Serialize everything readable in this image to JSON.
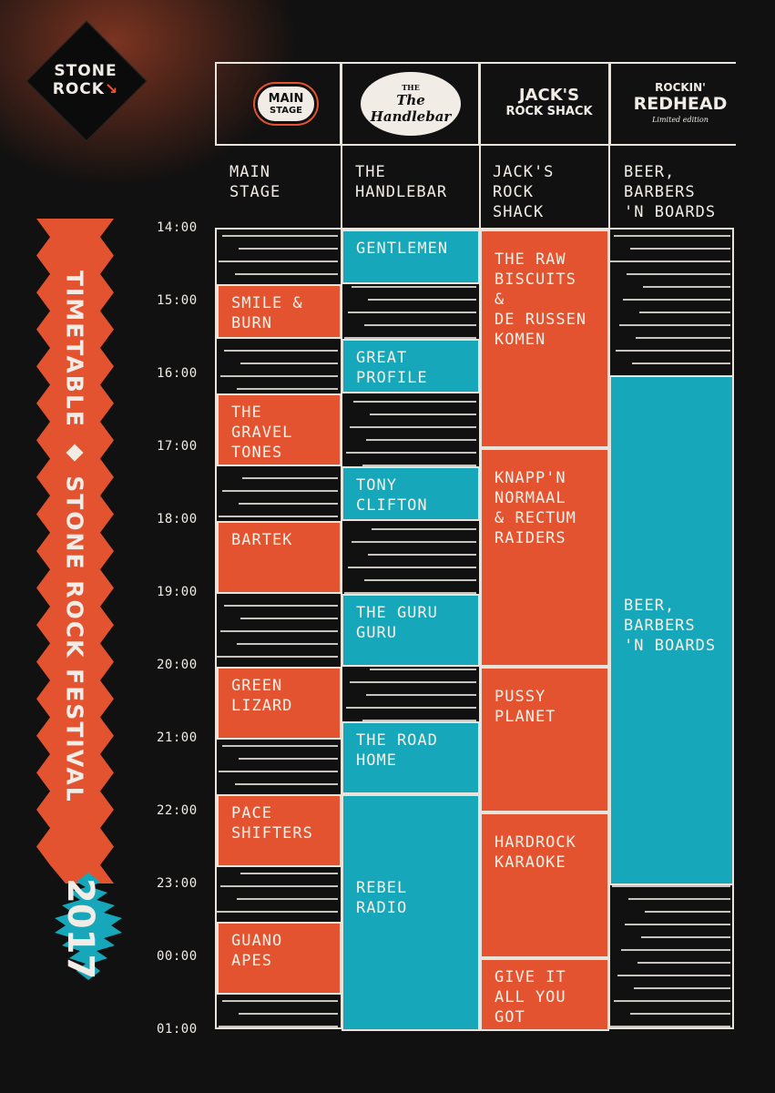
{
  "brand": {
    "logo_line1": "STONE",
    "logo_line2": "ROCK",
    "title": "TIMETABLE ◆ STONE ROCK FESTIVAL",
    "year": "2017"
  },
  "venue_logos": [
    {
      "text_main": "MAIN",
      "text_sub": "STAGE"
    },
    {
      "text_main": "The Handlebar",
      "text_sub": "THE"
    },
    {
      "text_main": "JACK'S",
      "text_sub": "ROCK SHACK"
    },
    {
      "text_main": "ROCKIN'",
      "text_sub": "REDHEAD",
      "tagline": "Limited edition"
    }
  ],
  "venues": [
    {
      "line1": "MAIN",
      "line2": "STAGE",
      "line3": ""
    },
    {
      "line1": "THE",
      "line2": "HANDLEBAR",
      "line3": ""
    },
    {
      "line1": "JACK'S",
      "line2": "ROCK",
      "line3": "SHACK"
    },
    {
      "line1": "BEER,",
      "line2": "BARBERS",
      "line3": "'N BOARDS"
    }
  ],
  "times": [
    "14:00",
    "15:00",
    "16:00",
    "17:00",
    "18:00",
    "19:00",
    "20:00",
    "21:00",
    "22:00",
    "23:00",
    "00:00",
    "01:00"
  ],
  "colors": {
    "orange": "#e4532f",
    "teal": "#16a8ba",
    "background": "#121111"
  },
  "acts": [
    {
      "col": 0,
      "start": 14.75,
      "end": 15.5,
      "color": "orange",
      "line1": "SMILE &",
      "line2": "BURN",
      "line3": ""
    },
    {
      "col": 0,
      "start": 16.25,
      "end": 17.25,
      "color": "orange",
      "line1": "THE",
      "line2": "GRAVEL",
      "line3": "TONES"
    },
    {
      "col": 0,
      "start": 18.0,
      "end": 19.0,
      "color": "orange",
      "line1": "BARTEK",
      "line2": "",
      "line3": ""
    },
    {
      "col": 0,
      "start": 20.0,
      "end": 21.0,
      "color": "orange",
      "line1": "GREEN",
      "line2": "LIZARD",
      "line3": ""
    },
    {
      "col": 0,
      "start": 21.75,
      "end": 22.75,
      "color": "orange",
      "line1": "PACE",
      "line2": "SHIFTERS",
      "line3": ""
    },
    {
      "col": 0,
      "start": 23.5,
      "end": 24.5,
      "color": "orange",
      "line1": "GUANO",
      "line2": "APES",
      "line3": ""
    },
    {
      "col": 1,
      "start": 14.0,
      "end": 14.75,
      "color": "teal",
      "line1": "GENTLEMEN",
      "line2": "",
      "line3": ""
    },
    {
      "col": 1,
      "start": 15.5,
      "end": 16.25,
      "color": "teal",
      "line1": "GREAT",
      "line2": "PROFILE",
      "line3": ""
    },
    {
      "col": 1,
      "start": 17.25,
      "end": 18.0,
      "color": "teal",
      "line1": "TONY",
      "line2": "CLIFTON",
      "line3": ""
    },
    {
      "col": 1,
      "start": 19.0,
      "end": 20.0,
      "color": "teal",
      "line1": "THE GURU",
      "line2": "GURU",
      "line3": ""
    },
    {
      "col": 1,
      "start": 20.75,
      "end": 21.75,
      "color": "teal",
      "line1": "THE ROAD",
      "line2": "HOME",
      "line3": ""
    },
    {
      "col": 1,
      "start": 21.75,
      "end": 25.0,
      "color": "teal",
      "line1": "REBEL",
      "line2": "RADIO",
      "line3": ""
    },
    {
      "col": 2,
      "start": 14.0,
      "end": 17.0,
      "color": "orange",
      "line1": "THE RAW",
      "line2": "BISCUITS &",
      "line3": "DE RUSSEN",
      "line4": "KOMEN"
    },
    {
      "col": 2,
      "start": 17.0,
      "end": 20.0,
      "color": "orange",
      "line1": "KNAPP'N",
      "line2": "NORMAAL",
      "line3": "& RECTUM",
      "line4": "RAIDERS"
    },
    {
      "col": 2,
      "start": 20.0,
      "end": 22.0,
      "color": "orange",
      "line1": "PUSSY",
      "line2": "PLANET",
      "line3": ""
    },
    {
      "col": 2,
      "start": 22.0,
      "end": 24.0,
      "color": "orange",
      "line1": "HARDROCK",
      "line2": "KARAOKE",
      "line3": ""
    },
    {
      "col": 2,
      "start": 24.0,
      "end": 25.0,
      "color": "orange",
      "line1": "GIVE IT",
      "line2": "ALL YOU",
      "line3": "GOT"
    },
    {
      "col": 3,
      "start": 16.0,
      "end": 23.0,
      "color": "teal",
      "line1": "BEER,",
      "line2": "BARBERS",
      "line3": "'N BOARDS"
    }
  ]
}
